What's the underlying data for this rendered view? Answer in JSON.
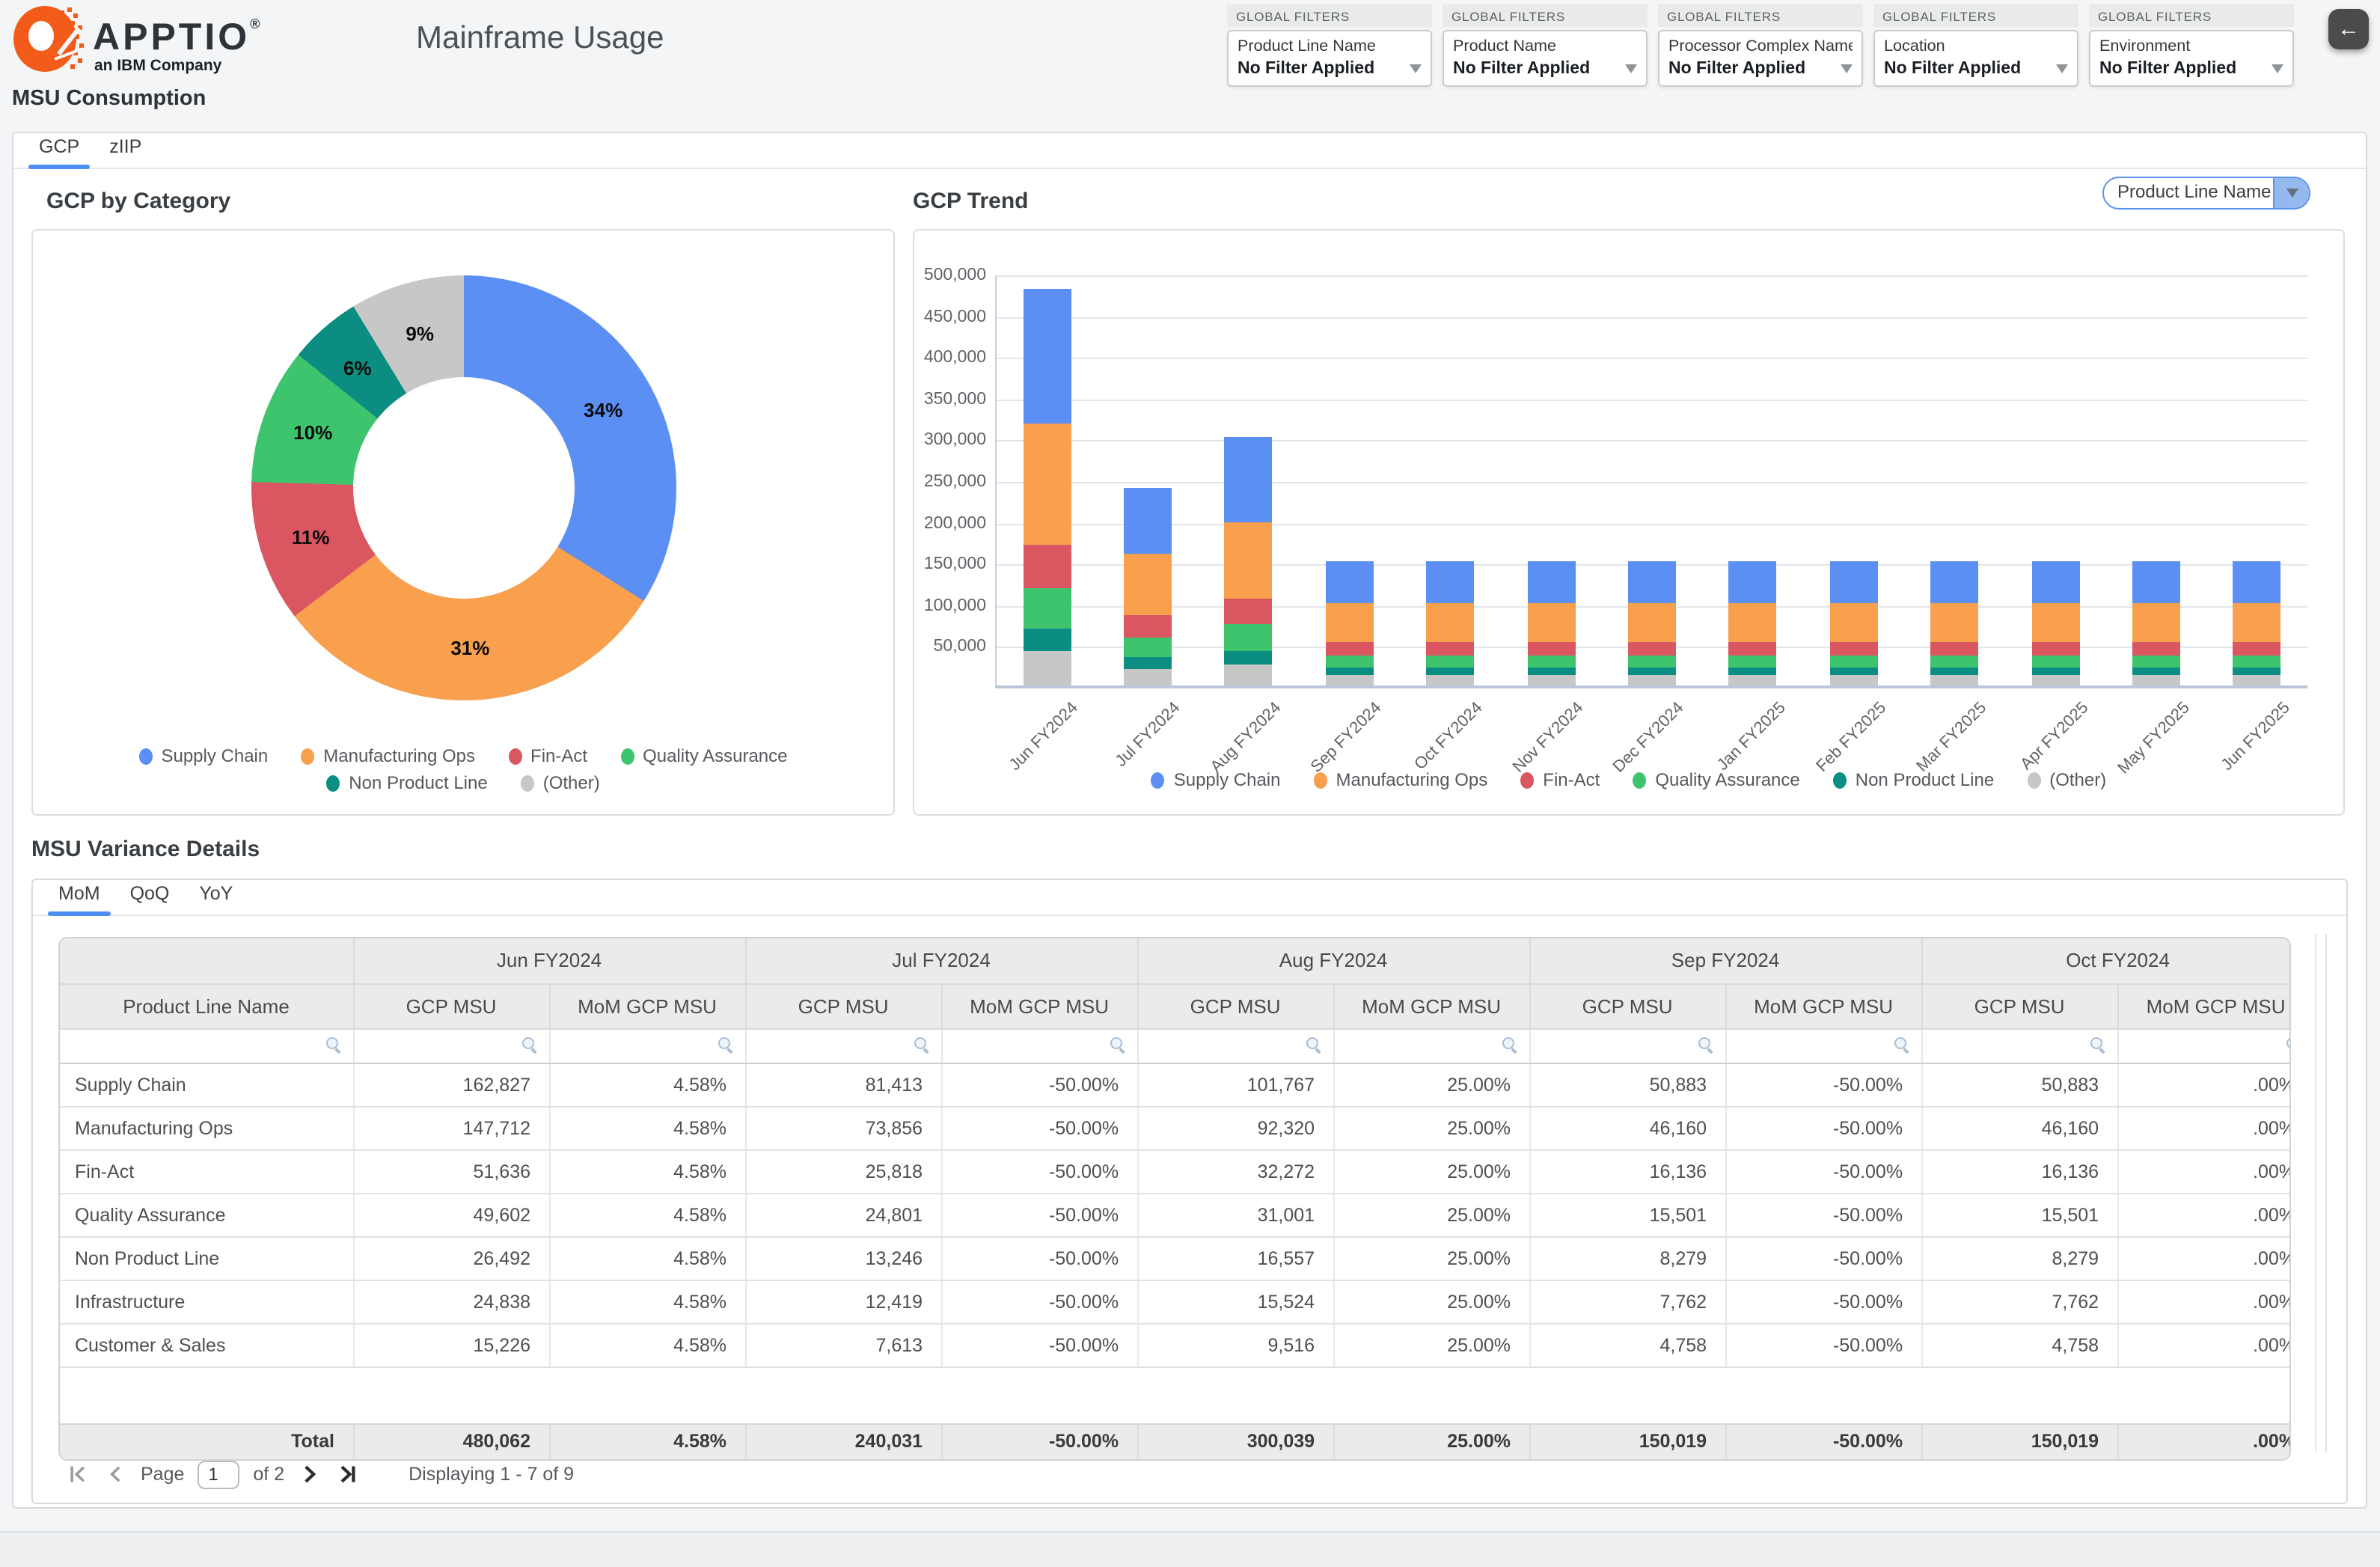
{
  "app": {
    "brand": "APPTIO",
    "brand_mark": "®",
    "brand_sub": "an IBM Company",
    "title": "Mainframe Usage",
    "back_icon": "left-arrow"
  },
  "global_filters": {
    "header": "GLOBAL FILTERS",
    "items": [
      {
        "name": "Product Line Name",
        "value": "No Filter Applied"
      },
      {
        "name": "Product Name",
        "value": "No Filter Applied"
      },
      {
        "name": "Processor Complex Name",
        "value": "No Filter Applied"
      },
      {
        "name": "Location",
        "value": "No Filter Applied"
      },
      {
        "name": "Environment",
        "value": "No Filter Applied"
      }
    ]
  },
  "consumption": {
    "heading": "MSU Consumption",
    "tabs": [
      {
        "label": "GCP",
        "active": true
      },
      {
        "label": "zIIP",
        "active": false
      }
    ]
  },
  "colors": {
    "accent_blue": "#4d8ef5",
    "supply_chain": "#5b8ff3",
    "manufacturing_ops": "#f8a04e",
    "fin_act": "#da5661",
    "quality_assurance": "#3fc46e",
    "non_product_line": "#0b8e81",
    "other": "#c7c7c7"
  },
  "chart_data": [
    {
      "type": "pie",
      "title": "GCP by Category",
      "categories": [
        "Supply Chain",
        "Manufacturing Ops",
        "Fin-Act",
        "Quality Assurance",
        "Non Product Line",
        "(Other)"
      ],
      "values": [
        162827,
        147712,
        51636,
        49602,
        26492,
        41793
      ],
      "percent_labels": [
        "34%",
        "31%",
        "11%",
        "10%",
        "6%",
        "9%"
      ],
      "colors": [
        "#5b8ff3",
        "#f8a04e",
        "#da5661",
        "#3fc46e",
        "#0b8e81",
        "#c7c7c7"
      ],
      "donut": true,
      "legend_position": "bottom"
    },
    {
      "type": "bar",
      "title": "GCP Trend",
      "stacked": true,
      "selector": "Product Line Name",
      "categories": [
        "Jun FY2024",
        "Jul FY2024",
        "Aug FY2024",
        "Sep FY2024",
        "Oct FY2024",
        "Nov FY2024",
        "Dec FY2024",
        "Jan FY2025",
        "Feb FY2025",
        "Mar FY2025",
        "Apr FY2025",
        "May FY2025",
        "Jun FY2025"
      ],
      "series": [
        {
          "name": "Supply Chain",
          "color": "#5b8ff3",
          "values": [
            162827,
            81413,
            101767,
            50883,
            50883,
            50883,
            50883,
            50883,
            50883,
            50883,
            50883,
            50883,
            50883
          ]
        },
        {
          "name": "Manufacturing Ops",
          "color": "#f8a04e",
          "values": [
            147712,
            73856,
            92320,
            46160,
            46160,
            46160,
            46160,
            46160,
            46160,
            46160,
            46160,
            46160,
            46160
          ]
        },
        {
          "name": "Fin-Act",
          "color": "#da5661",
          "values": [
            51636,
            25818,
            32272,
            16136,
            16136,
            16136,
            16136,
            16136,
            16136,
            16136,
            16136,
            16136,
            16136
          ]
        },
        {
          "name": "Quality Assurance",
          "color": "#3fc46e",
          "values": [
            49602,
            24801,
            31001,
            15501,
            15501,
            15501,
            15501,
            15501,
            15501,
            15501,
            15501,
            15501,
            15501
          ]
        },
        {
          "name": "Non Product Line",
          "color": "#0b8e81",
          "values": [
            26492,
            13246,
            16557,
            8279,
            8279,
            8279,
            8279,
            8279,
            8279,
            8279,
            8279,
            8279,
            8279
          ]
        },
        {
          "name": "(Other)",
          "color": "#c7c7c7",
          "values": [
            41793,
            20897,
            26122,
            13060,
            13060,
            13060,
            13060,
            13060,
            13060,
            13060,
            13060,
            13060,
            13060
          ]
        }
      ],
      "ylim": [
        0,
        500000
      ],
      "ytick_step": 50000,
      "grid": true,
      "legend_position": "bottom"
    }
  ],
  "variance": {
    "heading": "MSU Variance Details",
    "tabs": [
      {
        "label": "MoM",
        "active": true
      },
      {
        "label": "QoQ",
        "active": false
      },
      {
        "label": "YoY",
        "active": false
      }
    ],
    "table": {
      "row_header": "Product Line Name",
      "col_groups": [
        "Jun FY2024",
        "Jul FY2024",
        "Aug FY2024",
        "Sep FY2024",
        "Oct FY2024"
      ],
      "value_headers": [
        "GCP MSU",
        "MoM GCP MSU"
      ],
      "rows": [
        {
          "name": "Supply Chain",
          "cells": [
            "162,827",
            "4.58%",
            "81,413",
            "-50.00%",
            "101,767",
            "25.00%",
            "50,883",
            "-50.00%",
            "50,883",
            ".00%"
          ]
        },
        {
          "name": "Manufacturing Ops",
          "cells": [
            "147,712",
            "4.58%",
            "73,856",
            "-50.00%",
            "92,320",
            "25.00%",
            "46,160",
            "-50.00%",
            "46,160",
            ".00%"
          ]
        },
        {
          "name": "Fin-Act",
          "cells": [
            "51,636",
            "4.58%",
            "25,818",
            "-50.00%",
            "32,272",
            "25.00%",
            "16,136",
            "-50.00%",
            "16,136",
            ".00%"
          ]
        },
        {
          "name": "Quality Assurance",
          "cells": [
            "49,602",
            "4.58%",
            "24,801",
            "-50.00%",
            "31,001",
            "25.00%",
            "15,501",
            "-50.00%",
            "15,501",
            ".00%"
          ]
        },
        {
          "name": "Non Product Line",
          "cells": [
            "26,492",
            "4.58%",
            "13,246",
            "-50.00%",
            "16,557",
            "25.00%",
            "8,279",
            "-50.00%",
            "8,279",
            ".00%"
          ]
        },
        {
          "name": "Infrastructure",
          "cells": [
            "24,838",
            "4.58%",
            "12,419",
            "-50.00%",
            "15,524",
            "25.00%",
            "7,762",
            "-50.00%",
            "7,762",
            ".00%"
          ]
        },
        {
          "name": "Customer & Sales",
          "cells": [
            "15,226",
            "4.58%",
            "7,613",
            "-50.00%",
            "9,516",
            "25.00%",
            "4,758",
            "-50.00%",
            "4,758",
            ".00%"
          ]
        }
      ],
      "total": {
        "label": "Total",
        "cells": [
          "480,062",
          "4.58%",
          "240,031",
          "-50.00%",
          "300,039",
          "25.00%",
          "150,019",
          "-50.00%",
          "150,019",
          ".00%"
        ]
      }
    },
    "pagination": {
      "page_label": "Page",
      "page_value": "1",
      "of_label": "of 2",
      "displaying": "Displaying 1 - 7 of 9"
    }
  }
}
